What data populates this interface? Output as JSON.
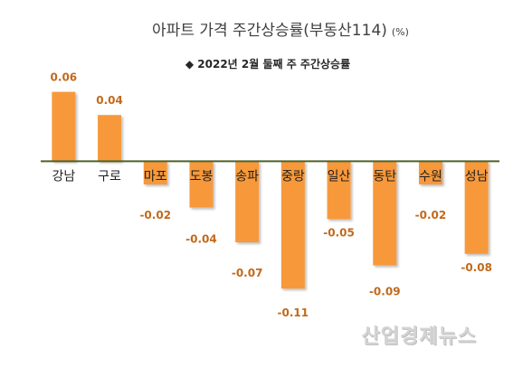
{
  "chart_data": {
    "type": "bar",
    "title": "아파트 가격 주간상승률(부동산114)",
    "unit": "(%)",
    "subtitle": "◆ 2022년 2월 둘째 주 주간상승률",
    "categories": [
      "강남",
      "구로",
      "마포",
      "도봉",
      "송파",
      "중랑",
      "일산",
      "동탄",
      "수원",
      "성남"
    ],
    "values": [
      0.06,
      0.04,
      -0.02,
      -0.04,
      -0.07,
      -0.11,
      -0.05,
      -0.09,
      -0.02,
      -0.08
    ],
    "ylim": [
      -0.12,
      0.08
    ],
    "grid": false,
    "data_labels": true
  },
  "watermark": "산업경제뉴스",
  "colors": {
    "bar": "#F7993B",
    "value_label": "#C2691B",
    "baseline": "#4F6228",
    "title": "#404040",
    "text": "#1F1F1F",
    "watermark": "#D4D4D4"
  }
}
